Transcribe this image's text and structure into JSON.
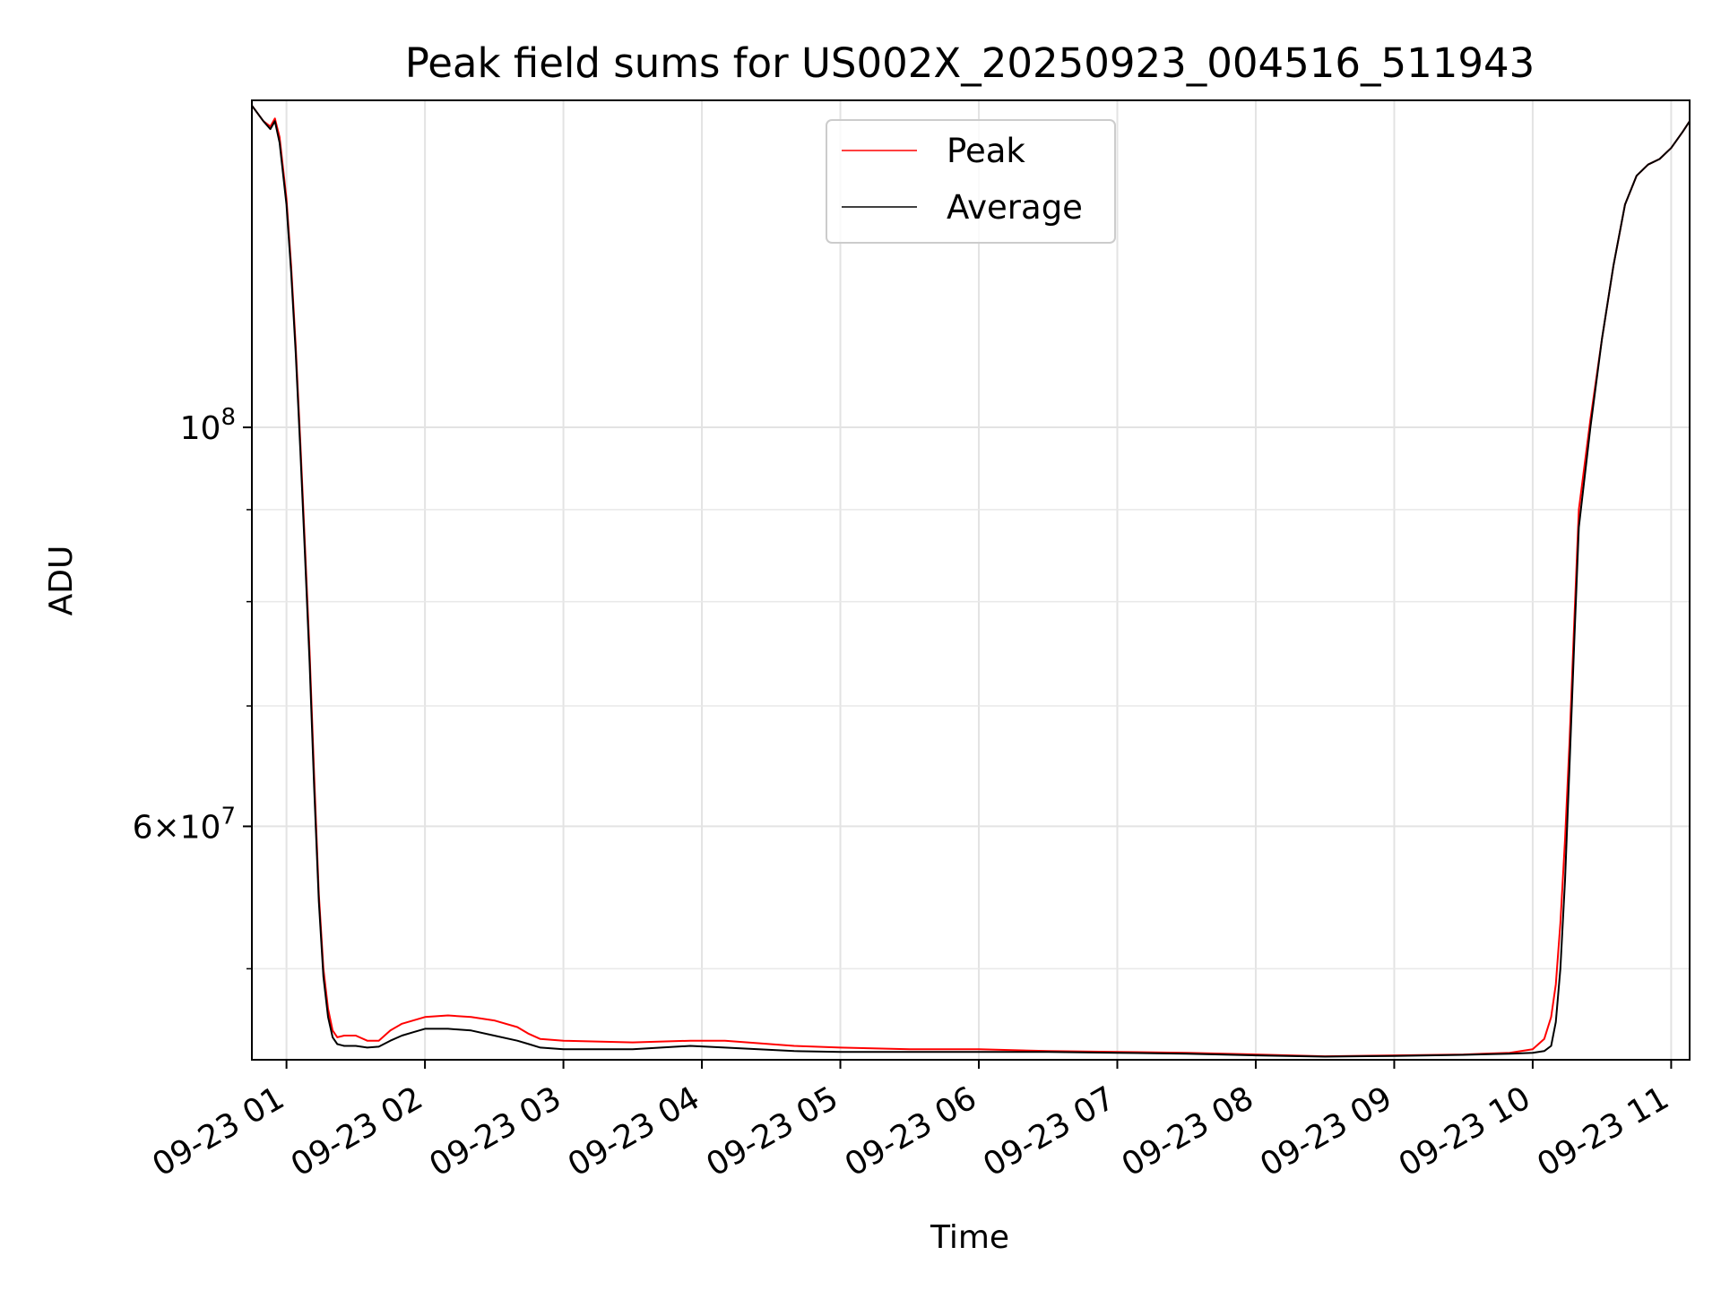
{
  "chart_data": {
    "type": "line",
    "title": "Peak field sums for US002X_20250923_004516_511943",
    "xlabel": "Time",
    "ylabel": "ADU",
    "y_scale": "log",
    "x_unit": "time",
    "xlim": [
      "09-23 00:45",
      "09-23 11:08"
    ],
    "ylim": [
      44500000,
      152000000
    ],
    "x_tick_labels": [
      "09-23 01",
      "09-23 02",
      "09-23 03",
      "09-23 04",
      "09-23 05",
      "09-23 06",
      "09-23 07",
      "09-23 08",
      "09-23 09",
      "09-23 10",
      "09-23 11"
    ],
    "y_tick_labels": [
      {
        "value": 100000000,
        "base": "10",
        "exp": "8"
      },
      {
        "value": 60000000,
        "base": "6×10",
        "exp": "7"
      }
    ],
    "grid": true,
    "legend_position": "top-center",
    "series": [
      {
        "name": "Peak",
        "color": "#ff0000",
        "x": [
          "00:45",
          "00:50",
          "00:53",
          "00:55",
          "00:57",
          "01:00",
          "01:02",
          "01:04",
          "01:06",
          "01:08",
          "01:10",
          "01:12",
          "01:14",
          "01:16",
          "01:18",
          "01:20",
          "01:22",
          "01:25",
          "01:30",
          "01:35",
          "01:40",
          "01:45",
          "01:50",
          "01:55",
          "02:00",
          "02:10",
          "02:20",
          "02:30",
          "02:40",
          "02:45",
          "02:50",
          "03:00",
          "03:30",
          "03:55",
          "04:10",
          "04:40",
          "05:00",
          "05:30",
          "06:00",
          "06:30",
          "07:00",
          "07:30",
          "08:00",
          "08:30",
          "09:00",
          "09:30",
          "09:50",
          "10:00",
          "10:05",
          "10:08",
          "10:10",
          "10:12",
          "10:14",
          "10:16",
          "10:18",
          "10:20",
          "10:25",
          "10:30",
          "10:35",
          "10:40",
          "10:45",
          "10:50",
          "10:55",
          "11:00",
          "11:05",
          "11:08"
        ],
        "y": [
          151000000,
          148000000,
          147000000,
          148500000,
          145000000,
          134000000,
          123000000,
          111000000,
          98000000,
          86000000,
          75000000,
          64000000,
          55000000,
          50000000,
          47500000,
          46200000,
          45800000,
          45900000,
          45900000,
          45600000,
          45600000,
          46200000,
          46600000,
          46800000,
          47000000,
          47100000,
          47000000,
          46800000,
          46400000,
          46000000,
          45700000,
          45600000,
          45500000,
          45600000,
          45600000,
          45300000,
          45200000,
          45100000,
          45100000,
          45000000,
          44950000,
          44900000,
          44800000,
          44700000,
          44750000,
          44800000,
          44900000,
          45100000,
          45700000,
          47000000,
          49000000,
          53000000,
          59000000,
          67000000,
          78000000,
          90000000,
          101000000,
          112000000,
          123000000,
          133000000,
          138000000,
          140000000,
          141000000,
          143000000,
          146000000,
          148000000
        ]
      },
      {
        "name": "Average",
        "color": "#000000",
        "x": [
          "00:45",
          "00:50",
          "00:53",
          "00:55",
          "00:57",
          "01:00",
          "01:02",
          "01:04",
          "01:06",
          "01:08",
          "01:10",
          "01:12",
          "01:14",
          "01:16",
          "01:18",
          "01:20",
          "01:22",
          "01:25",
          "01:30",
          "01:35",
          "01:40",
          "01:45",
          "01:50",
          "01:55",
          "02:00",
          "02:10",
          "02:20",
          "02:30",
          "02:40",
          "02:45",
          "02:50",
          "03:00",
          "03:30",
          "03:55",
          "04:10",
          "04:40",
          "05:00",
          "05:30",
          "06:00",
          "06:30",
          "07:00",
          "07:30",
          "08:00",
          "08:30",
          "09:00",
          "09:30",
          "09:50",
          "10:00",
          "10:05",
          "10:08",
          "10:10",
          "10:12",
          "10:14",
          "10:16",
          "10:18",
          "10:20",
          "10:25",
          "10:30",
          "10:35",
          "10:40",
          "10:45",
          "10:50",
          "10:55",
          "11:00",
          "11:05",
          "11:08"
        ],
        "y": [
          151000000,
          148000000,
          146500000,
          148000000,
          144000000,
          133000000,
          122000000,
          110000000,
          97000000,
          85000000,
          74000000,
          63000000,
          54500000,
          49500000,
          47000000,
          45800000,
          45400000,
          45300000,
          45300000,
          45200000,
          45250000,
          45600000,
          45900000,
          46100000,
          46300000,
          46300000,
          46200000,
          45900000,
          45600000,
          45400000,
          45200000,
          45100000,
          45100000,
          45300000,
          45200000,
          45000000,
          44950000,
          44950000,
          44950000,
          44950000,
          44900000,
          44850000,
          44750000,
          44680000,
          44720000,
          44780000,
          44850000,
          44900000,
          45000000,
          45300000,
          46700000,
          50000000,
          56000000,
          65000000,
          76000000,
          88000000,
          100000000,
          112000000,
          123000000,
          133000000,
          138000000,
          140000000,
          141000000,
          143000000,
          146000000,
          148000000
        ]
      }
    ]
  }
}
